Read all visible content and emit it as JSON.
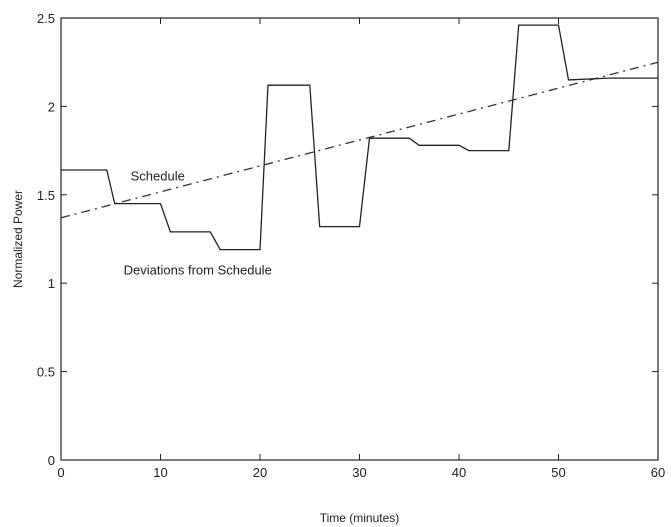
{
  "chart_data": {
    "type": "line",
    "title": "",
    "xlabel": "Time (minutes)",
    "ylabel": "Normalized Power",
    "xlim": [
      0,
      60
    ],
    "ylim": [
      0,
      2.5
    ],
    "xticks": [
      0,
      10,
      20,
      30,
      40,
      50,
      60
    ],
    "xtick_labels": [
      "0",
      "10",
      "20",
      "30",
      "40",
      "50",
      "60"
    ],
    "yticks": [
      0,
      0.5,
      1,
      1.5,
      2,
      2.5
    ],
    "ytick_labels": [
      "0",
      "0.5",
      "1",
      "1.5",
      "2",
      "2.5"
    ],
    "grid": false,
    "series": [
      {
        "name": "Schedule",
        "style": "dashed",
        "color": "#333333",
        "x": [
          0,
          60
        ],
        "y": [
          1.37,
          2.25
        ]
      },
      {
        "name": "Deviations from Schedule",
        "style": "solid",
        "color": "#222222",
        "x": [
          0,
          4.6,
          5.4,
          10,
          11,
          15,
          16,
          20,
          20.8,
          25,
          26,
          30,
          31,
          35,
          36,
          40,
          41,
          45,
          46,
          50,
          51,
          55,
          60
        ],
        "y": [
          1.64,
          1.64,
          1.45,
          1.45,
          1.29,
          1.29,
          1.19,
          1.19,
          2.12,
          2.12,
          1.32,
          1.32,
          1.82,
          1.82,
          1.78,
          1.78,
          1.75,
          1.75,
          2.46,
          2.46,
          2.15,
          2.16,
          2.16
        ]
      }
    ],
    "annotations": [
      {
        "text": "Schedule",
        "x": 7,
        "y": 1.58
      },
      {
        "text": "Deviations from Schedule",
        "x": 6.3,
        "y": 1.05
      }
    ]
  }
}
